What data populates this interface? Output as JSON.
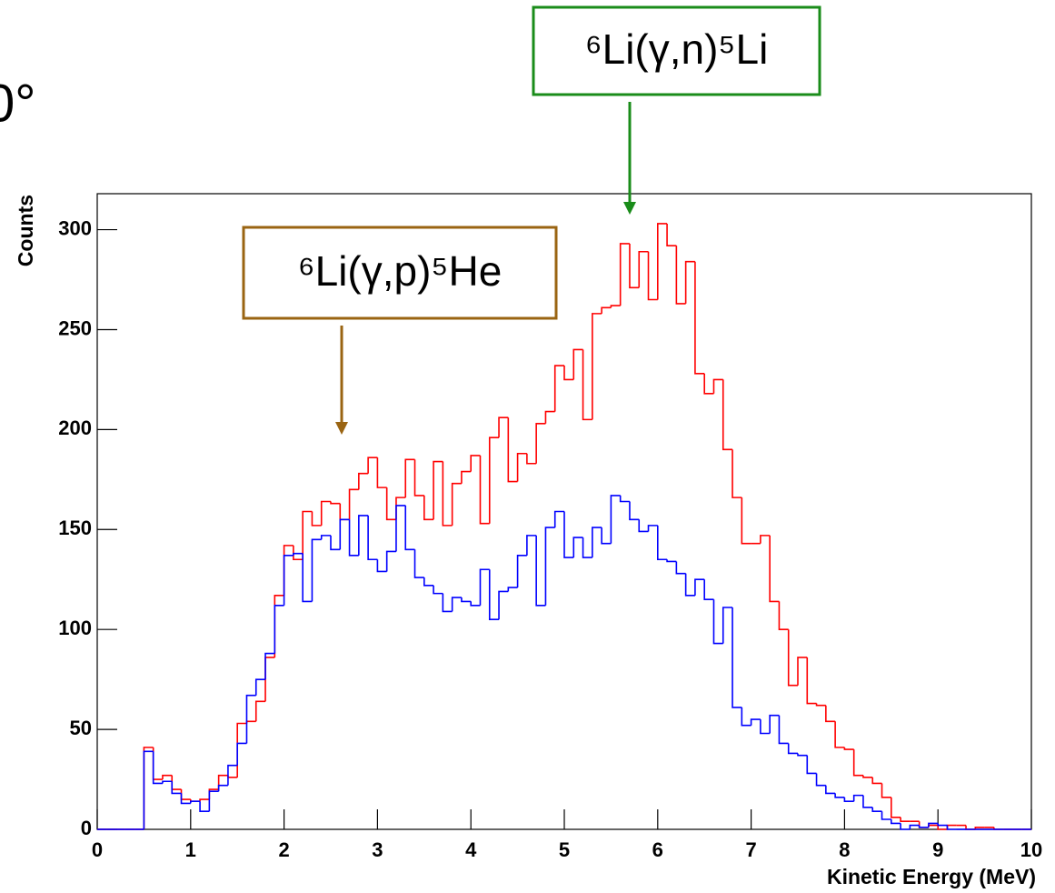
{
  "chart_data": {
    "type": "histogram",
    "heading": "0°",
    "xlabel": "Kinetic Energy (MeV)",
    "ylabel": "Counts",
    "bins": [
      0,
      0.1,
      0.2,
      0.3,
      0.4,
      0.5,
      0.6,
      0.7,
      0.8,
      0.9,
      1,
      1.1,
      1.2,
      1.3,
      1.4,
      1.5,
      1.6,
      1.7,
      1.8,
      1.9,
      2,
      2.1,
      2.2,
      2.3,
      2.4,
      2.5,
      2.6,
      2.7,
      2.8,
      2.9,
      3,
      3.1,
      3.2,
      3.3,
      3.4,
      3.5,
      3.6,
      3.7,
      3.8,
      3.9,
      4,
      4.1,
      4.2,
      4.3,
      4.4,
      4.5,
      4.6,
      4.7,
      4.8,
      4.9,
      5,
      5.1,
      5.2,
      5.3,
      5.4,
      5.5,
      5.6,
      5.7,
      5.8,
      5.9,
      6,
      6.1,
      6.2,
      6.3,
      6.4,
      6.5,
      6.6,
      6.7,
      6.8,
      6.9,
      7,
      7.1,
      7.2,
      7.3,
      7.4,
      7.5,
      7.6,
      7.7,
      7.8,
      7.9,
      8,
      8.1,
      8.2,
      8.3,
      8.4,
      8.5,
      8.6,
      8.7,
      8.8,
      8.9,
      9,
      9.1,
      9.2,
      9.3,
      9.4,
      9.5,
      9.6,
      9.7,
      9.8,
      9.9,
      10
    ],
    "series": [
      {
        "color": "#ff0000",
        "values": [
          0,
          0,
          0,
          0,
          0,
          41,
          25,
          27,
          20,
          15,
          14,
          15,
          20,
          27,
          26,
          53,
          54,
          64,
          86,
          117,
          142,
          135,
          159,
          152,
          164,
          163,
          155,
          170,
          178,
          186,
          171,
          155,
          166,
          185,
          167,
          155,
          184,
          152,
          173,
          179,
          187,
          153,
          196,
          206,
          174,
          188,
          183,
          203,
          209,
          232,
          225,
          240,
          205,
          258,
          261,
          262,
          293,
          271,
          289,
          265,
          303,
          292,
          263,
          284,
          228,
          218,
          225,
          190,
          166,
          143,
          143,
          147,
          114,
          100,
          72,
          86,
          63,
          62,
          54,
          41,
          40,
          27,
          26,
          23,
          16,
          6,
          4,
          4,
          1,
          2,
          0,
          2,
          2,
          0,
          1,
          1,
          0,
          0,
          0,
          0
        ]
      },
      {
        "color": "#0000ff",
        "values": [
          0,
          0,
          0,
          0,
          0,
          39,
          23,
          24,
          18,
          13,
          14,
          9,
          19,
          22,
          32,
          43,
          67,
          75,
          88,
          112,
          137,
          138,
          114,
          145,
          147,
          140,
          155,
          137,
          157,
          135,
          129,
          139,
          162,
          140,
          126,
          122,
          118,
          109,
          116,
          114,
          112,
          130,
          105,
          119,
          121,
          137,
          147,
          112,
          151,
          159,
          136,
          146,
          136,
          151,
          143,
          167,
          164,
          155,
          149,
          152,
          135,
          134,
          128,
          117,
          125,
          115,
          93,
          111,
          61,
          52,
          55,
          48,
          57,
          43,
          38,
          37,
          28,
          22,
          18,
          16,
          14,
          17,
          11,
          9,
          5,
          3,
          0,
          2,
          1,
          3,
          2,
          0,
          0,
          0,
          0,
          0,
          0,
          0,
          0,
          0
        ]
      }
    ],
    "xlim": [
      0,
      10
    ],
    "ylim": [
      0,
      318
    ],
    "xticks": [
      0,
      1,
      2,
      3,
      4,
      5,
      6,
      7,
      8,
      9,
      10
    ],
    "yticks": [
      0,
      50,
      100,
      150,
      200,
      250,
      300
    ],
    "annotations": [
      {
        "text": "⁶Li(γ,n)⁵Li",
        "color": "#1a8c1a"
      },
      {
        "text": "⁶Li(γ,p)⁵He",
        "color": "#9a6412"
      }
    ]
  }
}
